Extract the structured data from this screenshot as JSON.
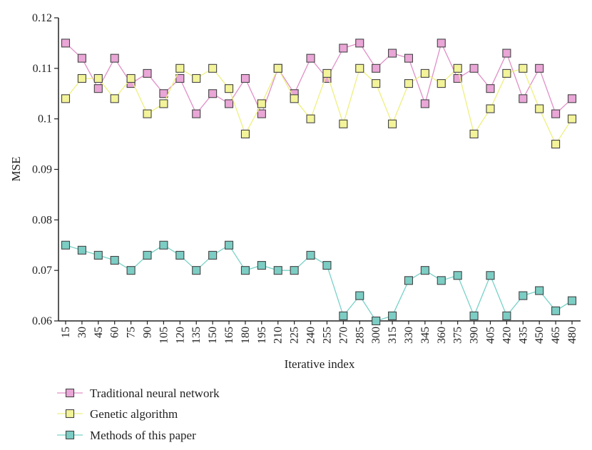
{
  "chart_data": {
    "type": "line",
    "title": "",
    "xlabel": "Iterative index",
    "ylabel": "MSE",
    "ylim": [
      0.06,
      0.12
    ],
    "yticks": [
      "0.06",
      "0.07",
      "0.08",
      "0.09",
      "0.1",
      "0.11",
      "0.12"
    ],
    "grid": false,
    "legend_position": "bottom-left",
    "x": [
      15,
      30,
      45,
      60,
      75,
      90,
      105,
      120,
      135,
      150,
      165,
      180,
      195,
      210,
      225,
      240,
      255,
      270,
      285,
      300,
      315,
      330,
      345,
      360,
      375,
      390,
      405,
      420,
      435,
      450,
      465,
      480
    ],
    "series": [
      {
        "name": "Traditional neural network",
        "line_color": "#e08fc8",
        "marker_color": "#e9a6d6",
        "values": [
          0.115,
          0.112,
          0.106,
          0.112,
          0.107,
          0.109,
          0.105,
          0.108,
          0.101,
          0.105,
          0.103,
          0.108,
          0.101,
          0.11,
          0.105,
          0.112,
          0.108,
          0.114,
          0.115,
          0.11,
          0.113,
          0.112,
          0.103,
          0.115,
          0.108,
          0.11,
          0.106,
          0.113,
          0.104,
          0.11,
          0.101,
          0.104
        ]
      },
      {
        "name": "Genetic algorithm",
        "line_color": "#eef07e",
        "marker_color": "#f3f39a",
        "values": [
          0.104,
          0.108,
          0.108,
          0.104,
          0.108,
          0.101,
          0.103,
          0.11,
          0.108,
          0.11,
          0.106,
          0.097,
          0.103,
          0.11,
          0.104,
          0.1,
          0.109,
          0.099,
          0.11,
          0.107,
          0.099,
          0.107,
          0.109,
          0.107,
          0.11,
          0.097,
          0.102,
          0.109,
          0.11,
          0.102,
          0.095,
          0.1
        ]
      },
      {
        "name": "Methods of this paper",
        "line_color": "#78d2c8",
        "marker_color": "#7ccdc4",
        "values": [
          0.075,
          0.074,
          0.073,
          0.072,
          0.07,
          0.073,
          0.075,
          0.073,
          0.07,
          0.073,
          0.075,
          0.07,
          0.071,
          0.07,
          0.07,
          0.073,
          0.071,
          0.061,
          0.065,
          0.06,
          0.061,
          0.068,
          0.07,
          0.068,
          0.069,
          0.061,
          0.069,
          0.061,
          0.065,
          0.066,
          0.062,
          0.064
        ]
      }
    ]
  }
}
